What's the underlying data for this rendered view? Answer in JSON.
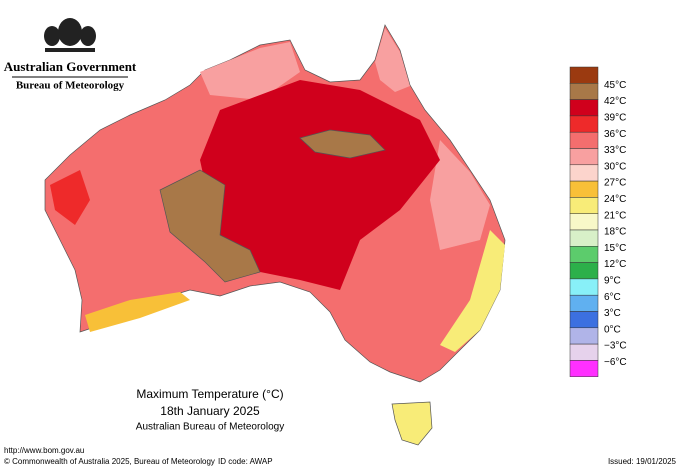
{
  "header": {
    "title": "Australian Government",
    "subtitle": "Bureau of Meteorology"
  },
  "legend": [
    {
      "color": "#9b3a10"
    },
    {
      "label": "45°C",
      "color": "#a87848"
    },
    {
      "label": "42°C",
      "color": "#d0001c"
    },
    {
      "label": "39°C",
      "color": "#ee2a2a"
    },
    {
      "label": "36°C",
      "color": "#f46e6e"
    },
    {
      "label": "33°C",
      "color": "#f8a0a0"
    },
    {
      "label": "30°C",
      "color": "#fcd4cc"
    },
    {
      "label": "27°C",
      "color": "#f8c038"
    },
    {
      "label": "24°C",
      "color": "#f8ec78"
    },
    {
      "label": "21°C",
      "color": "#f8f8c8"
    },
    {
      "label": "18°C",
      "color": "#d8f0c8"
    },
    {
      "label": "15°C",
      "color": "#5ccc6c"
    },
    {
      "label": "12°C",
      "color": "#2cb04a"
    },
    {
      "label": "9°C",
      "color": "#88f0f8"
    },
    {
      "label": "6°C",
      "color": "#60b0f0"
    },
    {
      "label": "3°C",
      "color": "#3c70e0"
    },
    {
      "label": "0°C",
      "color": "#b0b4e8"
    },
    {
      "label": "−3°C",
      "color": "#e6d2ec"
    },
    {
      "label": "−6°C",
      "color": "#ff30ff"
    }
  ],
  "caption": {
    "title": "Maximum Temperature (°C)",
    "date": "18th January 2025",
    "source": "Australian Bureau of Meteorology"
  },
  "footer": {
    "url": "http://www.bom.gov.au",
    "copyright": "© Commonwealth of Australia 2025, Bureau of Meteorology",
    "id": "ID code: AWAP",
    "issued": "Issued: 19/01/2025"
  }
}
